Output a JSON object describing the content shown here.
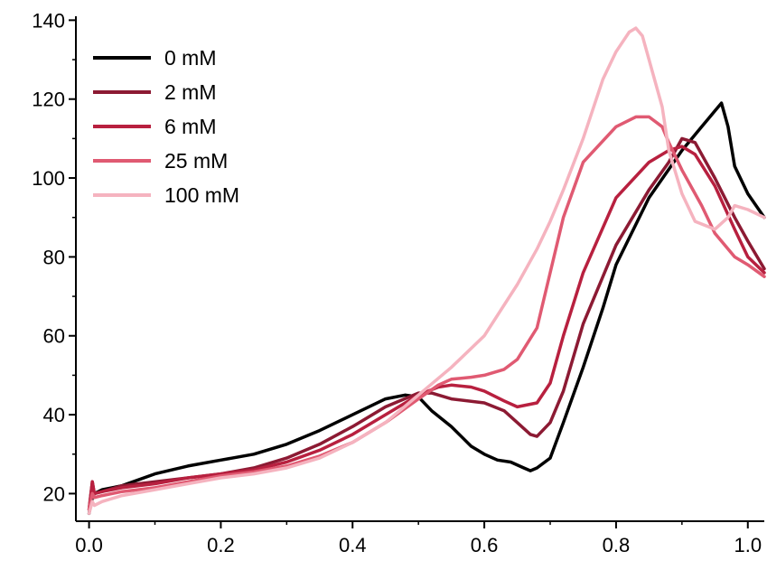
{
  "chart_data": {
    "type": "line",
    "title": "",
    "xlabel": "",
    "ylabel": "",
    "xlim": [
      -0.02,
      1.025
    ],
    "ylim": [
      13,
      141
    ],
    "x_ticks": [
      0.0,
      0.2,
      0.4,
      0.6,
      0.8,
      1.0
    ],
    "x_tick_labels": [
      "0.0",
      "0.2",
      "0.4",
      "0.6",
      "0.8",
      "1.0"
    ],
    "y_ticks": [
      20,
      40,
      60,
      80,
      100,
      120,
      140
    ],
    "y_tick_labels": [
      "20",
      "40",
      "60",
      "80",
      "100",
      "120",
      "140"
    ],
    "grid": false,
    "legend_position": "top-left",
    "series": [
      {
        "name": "0 mM",
        "color": "#000000",
        "x": [
          0.0,
          0.005,
          0.008,
          0.02,
          0.05,
          0.1,
          0.15,
          0.2,
          0.25,
          0.3,
          0.35,
          0.4,
          0.45,
          0.48,
          0.5,
          0.52,
          0.55,
          0.58,
          0.6,
          0.62,
          0.64,
          0.66,
          0.67,
          0.68,
          0.7,
          0.72,
          0.75,
          0.78,
          0.8,
          0.85,
          0.9,
          0.93,
          0.95,
          0.96,
          0.97,
          0.98,
          1.0,
          1.025
        ],
        "y": [
          15,
          19,
          20,
          21,
          22,
          25,
          27,
          28.5,
          30,
          32.5,
          36,
          40,
          44,
          45,
          44.5,
          41,
          37,
          32,
          30,
          28.5,
          28,
          26.5,
          25.8,
          26.5,
          29,
          38,
          52,
          67,
          78,
          95,
          107,
          113,
          117,
          119,
          113,
          103,
          96,
          90
        ]
      },
      {
        "name": "2 mM",
        "color": "#8c1a33",
        "x": [
          0.0,
          0.005,
          0.008,
          0.02,
          0.05,
          0.1,
          0.15,
          0.2,
          0.25,
          0.3,
          0.35,
          0.4,
          0.45,
          0.5,
          0.52,
          0.55,
          0.6,
          0.63,
          0.65,
          0.67,
          0.68,
          0.7,
          0.72,
          0.75,
          0.8,
          0.85,
          0.88,
          0.9,
          0.92,
          0.95,
          0.98,
          1.0,
          1.025
        ],
        "y": [
          16,
          23,
          20,
          20.5,
          22,
          23,
          24,
          25,
          26.5,
          29,
          32.5,
          37,
          42,
          45.5,
          45.5,
          44,
          43,
          41,
          38,
          35,
          34.5,
          38,
          46,
          63,
          83,
          97,
          104,
          110,
          109,
          100,
          90,
          84,
          77
        ]
      },
      {
        "name": "6 mM",
        "color": "#b8203f",
        "x": [
          0.0,
          0.005,
          0.008,
          0.02,
          0.05,
          0.1,
          0.15,
          0.2,
          0.25,
          0.3,
          0.35,
          0.4,
          0.45,
          0.5,
          0.53,
          0.55,
          0.58,
          0.6,
          0.63,
          0.65,
          0.68,
          0.7,
          0.72,
          0.75,
          0.8,
          0.85,
          0.88,
          0.9,
          0.92,
          0.95,
          0.98,
          1.0,
          1.025
        ],
        "y": [
          16,
          23,
          20,
          20.5,
          21.5,
          22.5,
          24,
          25,
          26,
          28,
          31,
          35,
          40,
          45,
          47,
          47.5,
          47,
          46,
          43.5,
          42,
          43,
          48,
          60,
          76,
          95,
          104,
          107,
          108,
          106,
          98,
          87,
          80,
          76
        ]
      },
      {
        "name": "25 mM",
        "color": "#e05a72",
        "x": [
          0.0,
          0.005,
          0.008,
          0.02,
          0.05,
          0.1,
          0.15,
          0.2,
          0.25,
          0.3,
          0.35,
          0.4,
          0.45,
          0.5,
          0.53,
          0.55,
          0.58,
          0.6,
          0.63,
          0.65,
          0.68,
          0.7,
          0.72,
          0.75,
          0.8,
          0.83,
          0.85,
          0.87,
          0.88,
          0.9,
          0.93,
          0.95,
          0.98,
          1.0,
          1.025
        ],
        "y": [
          16,
          20,
          19,
          19.5,
          20.5,
          21.5,
          23,
          24.5,
          25.5,
          27,
          29.5,
          33,
          38,
          44,
          47.5,
          49,
          49.5,
          50,
          51.5,
          54,
          62,
          76,
          90,
          104,
          113,
          115.5,
          115.5,
          113,
          109,
          102,
          93,
          86,
          80,
          78,
          75
        ]
      },
      {
        "name": "100 mM",
        "color": "#f5b3bf",
        "x": [
          0.0,
          0.005,
          0.008,
          0.02,
          0.05,
          0.1,
          0.15,
          0.2,
          0.25,
          0.3,
          0.35,
          0.4,
          0.45,
          0.5,
          0.55,
          0.6,
          0.65,
          0.68,
          0.7,
          0.72,
          0.75,
          0.78,
          0.8,
          0.82,
          0.83,
          0.84,
          0.85,
          0.87,
          0.88,
          0.9,
          0.92,
          0.95,
          0.97,
          0.98,
          1.0,
          1.025
        ],
        "y": [
          15,
          18,
          17,
          18,
          19.5,
          21,
          22.5,
          24,
          25,
          26.5,
          29,
          33,
          38,
          45,
          52,
          60,
          73,
          82,
          89,
          97,
          110,
          125,
          132,
          137,
          138,
          136,
          130,
          118,
          107,
          96,
          89,
          87,
          90,
          93,
          92,
          90
        ]
      }
    ]
  }
}
